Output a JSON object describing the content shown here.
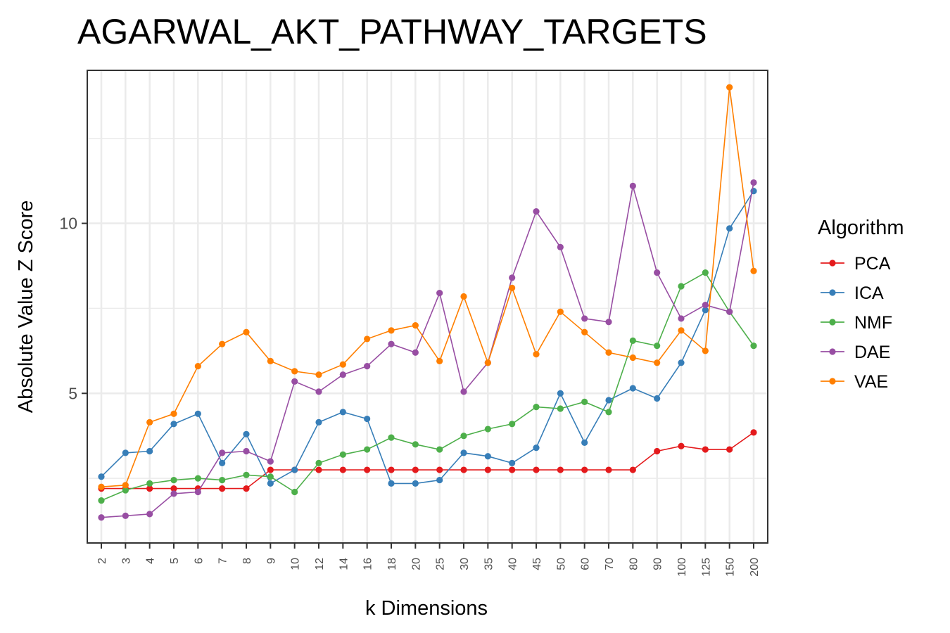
{
  "chart_data": {
    "type": "line",
    "title": "AGARWAL_AKT_PATHWAY_TARGETS",
    "xlabel": "k Dimensions",
    "ylabel": "Absolute Value Z Score",
    "categories": [
      "2",
      "3",
      "4",
      "5",
      "6",
      "7",
      "8",
      "9",
      "10",
      "12",
      "14",
      "16",
      "18",
      "20",
      "25",
      "30",
      "35",
      "40",
      "45",
      "50",
      "60",
      "70",
      "80",
      "90",
      "100",
      "125",
      "150",
      "200"
    ],
    "ylim": [
      0.6,
      14.5
    ],
    "yticks": [
      5,
      10
    ],
    "grid": true,
    "legend": {
      "title": "Algorithm",
      "position": "right"
    },
    "series": [
      {
        "name": "PCA",
        "color": "#e41a1c",
        "values": [
          2.2,
          2.2,
          2.2,
          2.2,
          2.2,
          2.2,
          2.2,
          2.75,
          2.75,
          2.75,
          2.75,
          2.75,
          2.75,
          2.75,
          2.75,
          2.75,
          2.75,
          2.75,
          2.75,
          2.75,
          2.75,
          2.75,
          2.75,
          3.3,
          3.45,
          3.35,
          3.35,
          3.85
        ]
      },
      {
        "name": "ICA",
        "color": "#377eb8",
        "values": [
          2.55,
          3.25,
          3.3,
          4.1,
          4.4,
          2.95,
          3.8,
          2.35,
          2.75,
          4.15,
          4.45,
          4.25,
          2.35,
          2.35,
          2.45,
          3.25,
          3.15,
          2.95,
          3.4,
          5.0,
          3.55,
          4.8,
          5.15,
          4.85,
          5.9,
          7.45,
          9.85,
          10.95
        ]
      },
      {
        "name": "NMF",
        "color": "#4daf4a",
        "values": [
          1.85,
          2.15,
          2.35,
          2.45,
          2.5,
          2.45,
          2.6,
          2.55,
          2.1,
          2.95,
          3.2,
          3.35,
          3.7,
          3.5,
          3.35,
          3.75,
          3.95,
          4.1,
          4.6,
          4.55,
          4.75,
          4.45,
          6.55,
          6.4,
          8.15,
          8.55,
          7.4,
          6.4
        ]
      },
      {
        "name": "DAE",
        "color": "#984ea3",
        "values": [
          1.35,
          1.4,
          1.45,
          2.05,
          2.1,
          3.25,
          3.3,
          3.0,
          5.35,
          5.05,
          5.55,
          5.8,
          6.45,
          6.2,
          7.95,
          5.05,
          5.9,
          8.4,
          10.35,
          9.3,
          7.2,
          7.1,
          11.1,
          8.55,
          7.2,
          7.6,
          7.4,
          11.2
        ]
      },
      {
        "name": "VAE",
        "color": "#ff7f00",
        "values": [
          2.25,
          2.3,
          4.15,
          4.4,
          5.8,
          6.45,
          6.8,
          5.95,
          5.65,
          5.55,
          5.85,
          6.6,
          6.85,
          7.0,
          5.95,
          7.85,
          5.9,
          8.1,
          6.15,
          7.4,
          6.8,
          6.2,
          6.05,
          5.9,
          6.85,
          6.25,
          14.0,
          8.6
        ]
      }
    ]
  }
}
